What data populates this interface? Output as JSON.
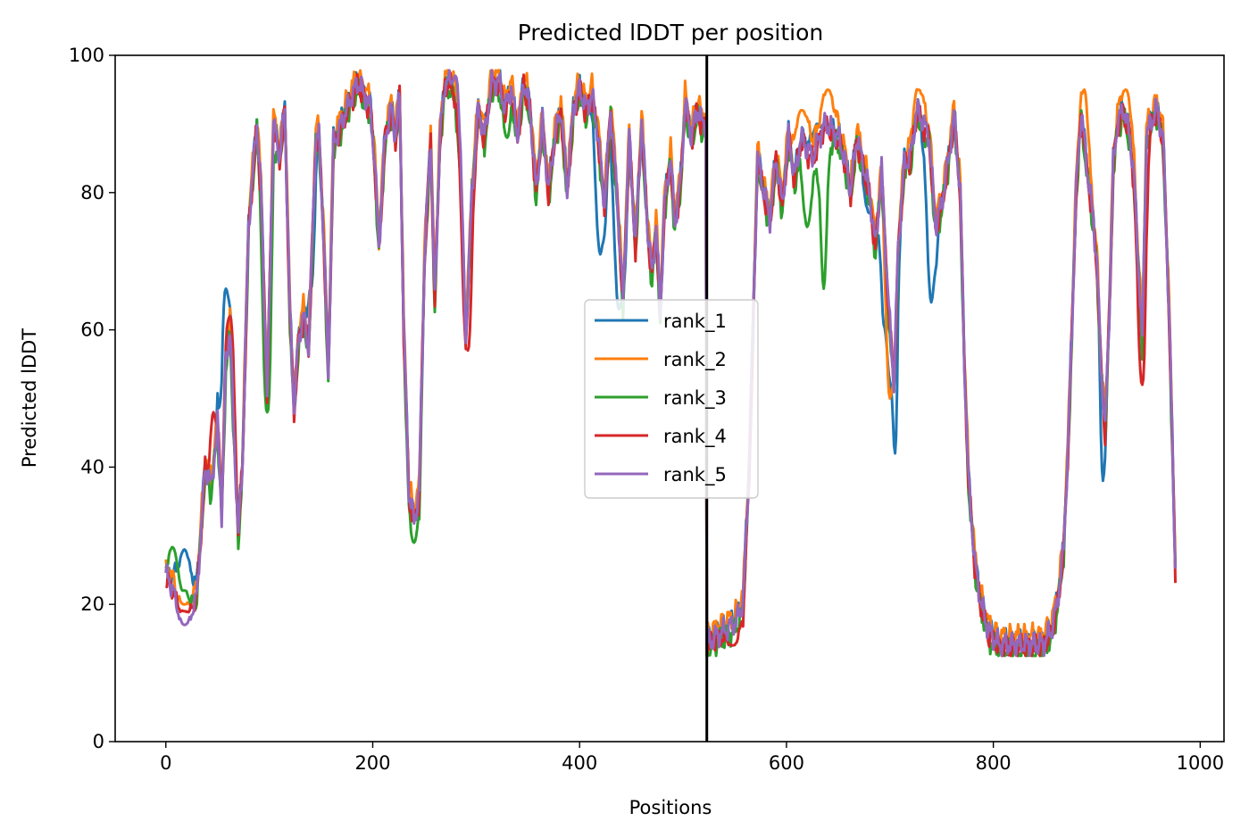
{
  "chart_data": {
    "type": "line",
    "title": "Predicted lDDT per position",
    "xlabel": "Positions",
    "ylabel": "Predicted lDDT",
    "xlim": [
      -49,
      1023
    ],
    "ylim": [
      0,
      100
    ],
    "xticks": [
      0,
      200,
      400,
      600,
      800,
      1000
    ],
    "yticks": [
      0,
      20,
      40,
      60,
      80,
      100
    ],
    "grid": false,
    "legend_position": "center",
    "vertical_line_x": 523,
    "series": [
      {
        "name": "rank_1",
        "color": "#1f77b4",
        "offset": 0.6,
        "dips": [
          [
            18,
            28,
            6
          ],
          [
            58,
            66,
            4
          ],
          [
            140,
            66,
            3
          ],
          [
            420,
            71,
            4
          ],
          [
            438,
            63,
            4
          ],
          [
            630,
            90,
            5
          ],
          [
            680,
            77,
            4
          ],
          [
            694,
            62,
            3
          ],
          [
            700,
            53,
            3
          ],
          [
            705,
            42,
            2
          ],
          [
            740,
            64,
            4
          ],
          [
            906,
            38,
            2
          ]
        ]
      },
      {
        "name": "rank_2",
        "color": "#ff7f0e",
        "offset": 1.4,
        "dips": [
          [
            18,
            20,
            6
          ],
          [
            615,
            92,
            6
          ],
          [
            640,
            95,
            5
          ],
          [
            700,
            50,
            3
          ],
          [
            728,
            95,
            4
          ],
          [
            888,
            95,
            3
          ],
          [
            928,
            95,
            4
          ]
        ]
      },
      {
        "name": "rank_3",
        "color": "#2ca02c",
        "offset": -0.9,
        "dips": [
          [
            8,
            29,
            6
          ],
          [
            18,
            22,
            5
          ],
          [
            98,
            48,
            3
          ],
          [
            620,
            75,
            4
          ],
          [
            636,
            66,
            3
          ],
          [
            330,
            88,
            3
          ],
          [
            240,
            29,
            3
          ]
        ]
      },
      {
        "name": "rank_4",
        "color": "#d62728",
        "offset": -0.3,
        "dips": [
          [
            18,
            19,
            6
          ],
          [
            46,
            48,
            3
          ],
          [
            62,
            62,
            3
          ],
          [
            292,
            57,
            3
          ],
          [
            548,
            14,
            6
          ],
          [
            944,
            52,
            3
          ]
        ]
      },
      {
        "name": "rank_5",
        "color": "#9467bd",
        "offset": 0.2,
        "dips": [
          [
            18,
            17,
            6
          ],
          [
            280,
            97,
            3
          ]
        ]
      }
    ],
    "base_profile": [
      [
        0,
        24
      ],
      [
        8,
        23
      ],
      [
        15,
        20
      ],
      [
        22,
        19
      ],
      [
        30,
        22
      ],
      [
        38,
        40
      ],
      [
        44,
        37
      ],
      [
        50,
        46
      ],
      [
        54,
        33
      ],
      [
        58,
        55
      ],
      [
        62,
        60
      ],
      [
        66,
        44
      ],
      [
        70,
        30
      ],
      [
        74,
        40
      ],
      [
        80,
        75
      ],
      [
        88,
        90
      ],
      [
        92,
        80
      ],
      [
        98,
        50
      ],
      [
        104,
        90
      ],
      [
        110,
        85
      ],
      [
        115,
        92
      ],
      [
        120,
        62
      ],
      [
        124,
        48
      ],
      [
        128,
        58
      ],
      [
        133,
        62
      ],
      [
        138,
        57
      ],
      [
        145,
        88
      ],
      [
        148,
        88
      ],
      [
        153,
        72
      ],
      [
        157,
        53
      ],
      [
        162,
        87
      ],
      [
        170,
        90
      ],
      [
        175,
        92
      ],
      [
        180,
        94
      ],
      [
        186,
        96
      ],
      [
        192,
        94
      ],
      [
        198,
        92
      ],
      [
        202,
        84
      ],
      [
        206,
        72
      ],
      [
        212,
        88
      ],
      [
        218,
        92
      ],
      [
        222,
        88
      ],
      [
        226,
        94
      ],
      [
        230,
        60
      ],
      [
        235,
        36
      ],
      [
        240,
        32
      ],
      [
        245,
        36
      ],
      [
        250,
        70
      ],
      [
        256,
        88
      ],
      [
        260,
        64
      ],
      [
        265,
        88
      ],
      [
        270,
        96
      ],
      [
        275,
        96
      ],
      [
        280,
        94
      ],
      [
        285,
        82
      ],
      [
        290,
        58
      ],
      [
        296,
        80
      ],
      [
        302,
        92
      ],
      [
        308,
        88
      ],
      [
        315,
        96
      ],
      [
        322,
        96
      ],
      [
        328,
        92
      ],
      [
        334,
        95
      ],
      [
        340,
        88
      ],
      [
        346,
        96
      ],
      [
        352,
        92
      ],
      [
        358,
        80
      ],
      [
        364,
        90
      ],
      [
        370,
        80
      ],
      [
        376,
        88
      ],
      [
        382,
        92
      ],
      [
        388,
        80
      ],
      [
        394,
        92
      ],
      [
        400,
        95
      ],
      [
        406,
        92
      ],
      [
        412,
        94
      ],
      [
        418,
        88
      ],
      [
        424,
        78
      ],
      [
        430,
        92
      ],
      [
        436,
        80
      ],
      [
        442,
        64
      ],
      [
        448,
        88
      ],
      [
        454,
        72
      ],
      [
        460,
        90
      ],
      [
        466,
        74
      ],
      [
        470,
        68
      ],
      [
        474,
        75
      ],
      [
        478,
        62
      ],
      [
        482,
        78
      ],
      [
        488,
        85
      ],
      [
        492,
        75
      ],
      [
        498,
        82
      ],
      [
        502,
        93
      ],
      [
        508,
        88
      ],
      [
        514,
        92
      ],
      [
        518,
        90
      ],
      [
        522,
        90
      ],
      [
        523,
        14
      ],
      [
        530,
        15
      ],
      [
        540,
        16
      ],
      [
        550,
        17
      ],
      [
        558,
        20
      ],
      [
        564,
        40
      ],
      [
        568,
        62
      ],
      [
        572,
        85
      ],
      [
        578,
        80
      ],
      [
        584,
        76
      ],
      [
        590,
        85
      ],
      [
        596,
        78
      ],
      [
        602,
        88
      ],
      [
        608,
        82
      ],
      [
        614,
        88
      ],
      [
        620,
        86
      ],
      [
        626,
        85
      ],
      [
        632,
        88
      ],
      [
        638,
        90
      ],
      [
        644,
        89
      ],
      [
        650,
        88
      ],
      [
        656,
        85
      ],
      [
        662,
        80
      ],
      [
        668,
        88
      ],
      [
        674,
        84
      ],
      [
        680,
        80
      ],
      [
        686,
        72
      ],
      [
        692,
        83
      ],
      [
        698,
        65
      ],
      [
        704,
        52
      ],
      [
        708,
        72
      ],
      [
        714,
        84
      ],
      [
        720,
        85
      ],
      [
        726,
        92
      ],
      [
        732,
        90
      ],
      [
        738,
        88
      ],
      [
        744,
        75
      ],
      [
        750,
        78
      ],
      [
        756,
        84
      ],
      [
        762,
        91
      ],
      [
        768,
        80
      ],
      [
        772,
        55
      ],
      [
        776,
        38
      ],
      [
        782,
        26
      ],
      [
        788,
        20
      ],
      [
        795,
        16
      ],
      [
        805,
        14
      ],
      [
        820,
        14
      ],
      [
        835,
        14
      ],
      [
        848,
        14
      ],
      [
        856,
        16
      ],
      [
        862,
        20
      ],
      [
        868,
        28
      ],
      [
        872,
        42
      ],
      [
        876,
        60
      ],
      [
        880,
        80
      ],
      [
        885,
        92
      ],
      [
        890,
        84
      ],
      [
        895,
        78
      ],
      [
        900,
        70
      ],
      [
        904,
        55
      ],
      [
        908,
        45
      ],
      [
        912,
        62
      ],
      [
        916,
        84
      ],
      [
        920,
        90
      ],
      [
        926,
        92
      ],
      [
        932,
        88
      ],
      [
        936,
        82
      ],
      [
        940,
        70
      ],
      [
        944,
        58
      ],
      [
        948,
        88
      ],
      [
        952,
        90
      ],
      [
        958,
        92
      ],
      [
        964,
        88
      ],
      [
        970,
        62
      ],
      [
        976,
        25
      ]
    ]
  },
  "legend": {
    "items": [
      "rank_1",
      "rank_2",
      "rank_3",
      "rank_4",
      "rank_5"
    ]
  }
}
